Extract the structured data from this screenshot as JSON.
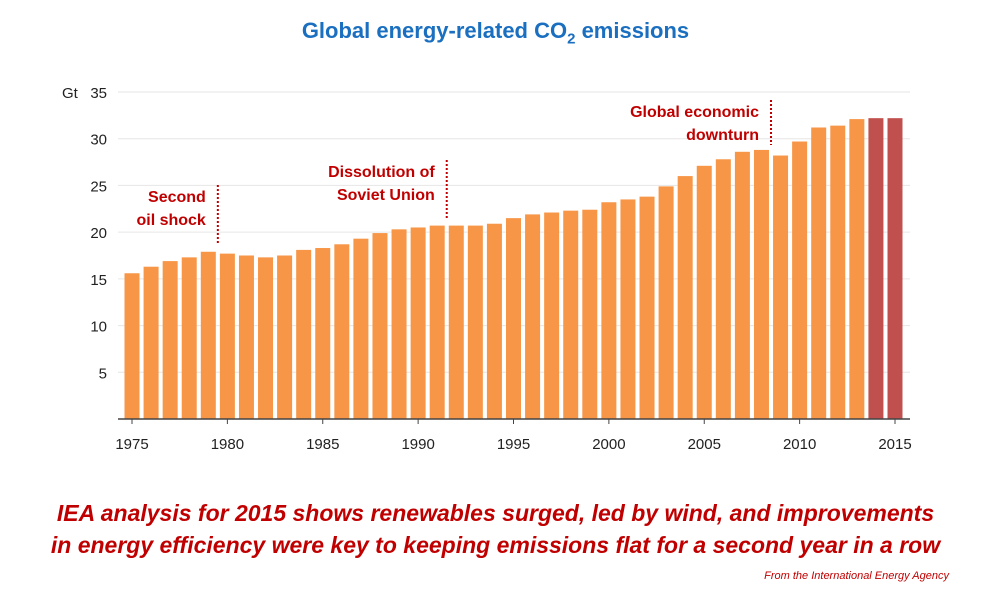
{
  "chart_data": {
    "type": "bar",
    "title_main": "Global energy-related CO",
    "title_sub": "2",
    "title_end": " emissions",
    "ylabel": "Gt",
    "ylim": [
      0,
      35
    ],
    "yticks": [
      5,
      10,
      15,
      20,
      25,
      30,
      35
    ],
    "xticks": [
      1975,
      1980,
      1985,
      1990,
      1995,
      2000,
      2005,
      2010,
      2015
    ],
    "grid": true,
    "categories": [
      1975,
      1976,
      1977,
      1978,
      1979,
      1980,
      1981,
      1982,
      1983,
      1984,
      1985,
      1986,
      1987,
      1988,
      1989,
      1990,
      1991,
      1992,
      1993,
      1994,
      1995,
      1996,
      1997,
      1998,
      1999,
      2000,
      2001,
      2002,
      2003,
      2004,
      2005,
      2006,
      2007,
      2008,
      2009,
      2010,
      2011,
      2012,
      2013,
      2014,
      2015
    ],
    "values": [
      15.6,
      16.3,
      16.9,
      17.3,
      17.9,
      17.7,
      17.5,
      17.3,
      17.5,
      18.1,
      18.3,
      18.7,
      19.3,
      19.9,
      20.3,
      20.5,
      20.7,
      20.7,
      20.7,
      20.9,
      21.5,
      21.9,
      22.1,
      22.3,
      22.4,
      23.2,
      23.5,
      23.8,
      24.9,
      26.0,
      27.1,
      27.8,
      28.6,
      28.8,
      28.2,
      29.7,
      31.2,
      31.4,
      32.1,
      32.2,
      32.2
    ],
    "colors": {
      "default": "#f79646",
      "highlight": "#c0504d",
      "highlight_years": [
        2014,
        2015
      ],
      "title": "#1a6fc0",
      "annotation": "#c00000"
    },
    "annotations": [
      {
        "year": 1979.5,
        "lines": [
          "Second",
          "oil shock"
        ]
      },
      {
        "year": 1991.5,
        "lines": [
          "Dissolution of",
          "Soviet Union"
        ]
      },
      {
        "year": 2008.5,
        "lines": [
          "Global economic",
          "downturn"
        ]
      }
    ]
  },
  "caption": {
    "line1": "IEA analysis for 2015 shows renewables surged, led by wind, and improvements",
    "line2": "in energy efficiency were key to keeping emissions flat for a second year in a row"
  },
  "source": "From the International Energy Agency"
}
